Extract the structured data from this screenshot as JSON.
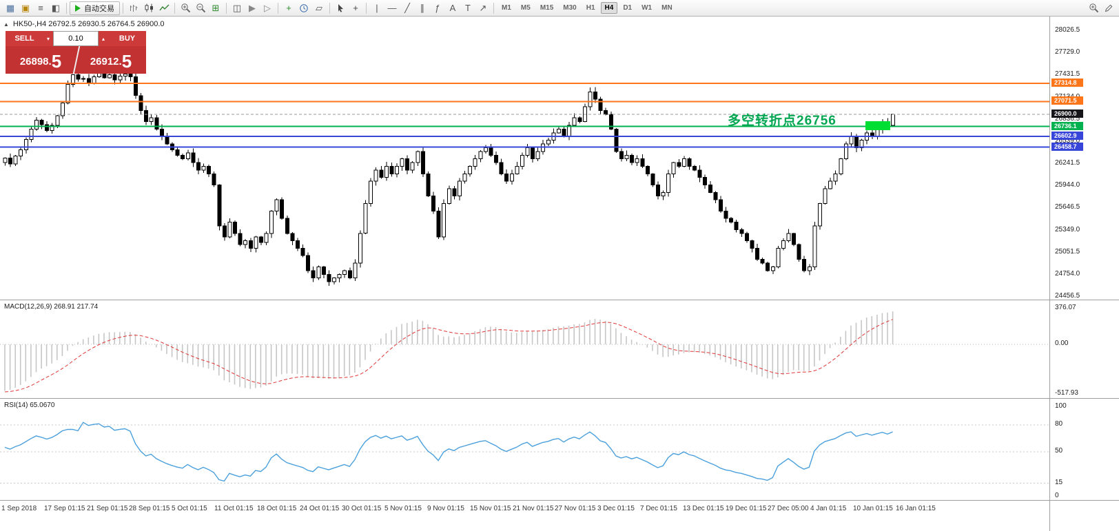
{
  "toolbar": {
    "auto_trading_label": "自动交易",
    "timeframes": [
      "M1",
      "M5",
      "M15",
      "M30",
      "H1",
      "H4",
      "D1",
      "W1",
      "MN"
    ],
    "active_timeframe": "H4",
    "groups": [
      [
        {
          "name": "new-chart-icon",
          "glyph": "▦",
          "color": "#4a6f9e"
        },
        {
          "name": "new-order-icon",
          "glyph": "▣",
          "color": "#b8860b"
        },
        {
          "name": "market-watch-icon",
          "glyph": "≡",
          "color": "#555555"
        },
        {
          "name": "navigator-icon",
          "glyph": "◧",
          "color": "#555555"
        }
      ],
      [
        {
          "name": "auto-trading-button",
          "type": "auto-trading"
        }
      ],
      [
        {
          "name": "bar-chart-icon",
          "glyph": "svg:bars"
        },
        {
          "name": "candlestick-chart-icon",
          "glyph": "svg:candles"
        },
        {
          "name": "line-chart-icon",
          "glyph": "svg:line"
        }
      ],
      [
        {
          "name": "zoom-in-icon",
          "glyph": "svg:zoomin"
        },
        {
          "name": "zoom-out-icon",
          "glyph": "svg:zoomout"
        },
        {
          "name": "grid-icon",
          "glyph": "⊞",
          "color": "#2e8b2e"
        }
      ],
      [
        {
          "name": "tile-windows-icon",
          "glyph": "◫",
          "color": "#555555"
        },
        {
          "name": "auto-scroll-icon",
          "glyph": "▶",
          "color": "#888888"
        },
        {
          "name": "chart-shift-icon",
          "glyph": "▷",
          "color": "#888888"
        }
      ],
      [
        {
          "name": "indicators-icon",
          "glyph": "+",
          "color": "#2e8b2e"
        },
        {
          "name": "periods-icon",
          "glyph": "svg:clock"
        },
        {
          "name": "templates-icon",
          "glyph": "▱",
          "color": "#555555"
        }
      ],
      [
        {
          "name": "cursor-icon",
          "glyph": "svg:cursor"
        },
        {
          "name": "crosshair-icon",
          "glyph": "+",
          "color": "#444444"
        }
      ],
      [
        {
          "name": "vertical-line-icon",
          "glyph": "|"
        },
        {
          "name": "horizontal-line-icon",
          "glyph": "—"
        },
        {
          "name": "trendline-icon",
          "glyph": "╱"
        },
        {
          "name": "channel-icon",
          "glyph": "∥"
        },
        {
          "name": "fibonacci-icon",
          "glyph": "ƒ"
        },
        {
          "name": "text-icon",
          "glyph": "A"
        },
        {
          "name": "label-icon",
          "glyph": "T"
        },
        {
          "name": "arrows-icon",
          "glyph": "↗"
        }
      ]
    ],
    "right_icons": [
      {
        "name": "search-icon",
        "glyph": "svg:zoomin"
      },
      {
        "name": "pencil-icon",
        "glyph": "svg:pencil"
      }
    ]
  },
  "chart": {
    "collapse_icon": "▲",
    "symbol_header": "HK50-,H4 26792.5 26930.5 26764.5 26900.0",
    "annotation": {
      "text": "多空转折点26756",
      "color": "#00a651",
      "anchor_value": 26736.1
    },
    "highlight_color": "#00dd33",
    "levels": [
      {
        "label": "27314.8",
        "value": 27314.8,
        "color": "#ff751a",
        "width": 2
      },
      {
        "label": "27071.5",
        "value": 27071.5,
        "color": "#ff751a",
        "width": 2
      },
      {
        "label": "26900.0",
        "value": 26900.0,
        "color": "#16161a",
        "line_color": "#9a9a9a",
        "dash": "4 3",
        "width": 1
      },
      {
        "label": "26736.1",
        "value": 26736.1,
        "color": "#00b14f",
        "width": 2
      },
      {
        "label": "26602.9",
        "value": 26602.9,
        "color": "#3745d8",
        "width": 2
      },
      {
        "label": "26458.7",
        "value": 26458.7,
        "color": "#3745d8",
        "width": 2
      }
    ],
    "axis_ticks": [
      "28026.5",
      "27729.0",
      "27431.5",
      "27134.0",
      "26836.5",
      "26539.0",
      "26241.5",
      "25944.0",
      "25646.5",
      "25349.0",
      "25051.5",
      "24754.0",
      "24456.5"
    ]
  },
  "trade_panel": {
    "sell_label": "SELL",
    "buy_label": "BUY",
    "volume": "0.10",
    "dropdown_icon": "▾",
    "spin_icon": "▴",
    "sell_price": "26898.5",
    "buy_price": "26912.5"
  },
  "macd": {
    "label": "MACD(12,26,9) 268.91 217.74",
    "axis": [
      "376.07",
      "0.00",
      "-517.93"
    ]
  },
  "rsi": {
    "label": "RSI(14) 65.0670",
    "axis": [
      "100",
      "80",
      "50",
      "15",
      "0"
    ],
    "levels": [
      80,
      50,
      15
    ]
  },
  "time_axis": [
    "1 Sep 2018",
    "17 Sep 01:15",
    "21 Sep 01:15",
    "28 Sep 01:15",
    "5 Oct 01:15",
    "11 Oct 01:15",
    "18 Oct 01:15",
    "24 Oct 01:15",
    "30 Oct 01:15",
    "5 Nov 01:15",
    "9 Nov 01:15",
    "15 Nov 01:15",
    "21 Nov 01:15",
    "27 Nov 01:15",
    "3 Dec 01:15",
    "7 Dec 01:15",
    "13 Dec 01:15",
    "19 Dec 01:15",
    "27 Dec 05:00",
    "4 Jan 01:15",
    "10 Jan 01:15",
    "16 Jan 01:15"
  ],
  "chart_data": {
    "type": "candlestick",
    "symbol": "HK50-",
    "timeframe": "H4",
    "open": "26792.5",
    "high": "26930.5",
    "low": "26764.5",
    "close": "26900.0",
    "price_axis": {
      "top_tick": 28026.5,
      "bottom_tick": 24456.5,
      "tick_step": 297.5
    },
    "closes": [
      26310,
      26230,
      26340,
      26420,
      26560,
      26700,
      26820,
      26760,
      26680,
      26750,
      26880,
      27050,
      27300,
      27430,
      27370,
      27380,
      27320,
      27400,
      27450,
      27390,
      27430,
      27360,
      27410,
      27440,
      27400,
      27150,
      26950,
      26800,
      26850,
      26700,
      26600,
      26500,
      26420,
      26350,
      26300,
      26380,
      26250,
      26150,
      26200,
      26100,
      25950,
      25400,
      25250,
      25450,
      25300,
      25150,
      25200,
      25100,
      25250,
      25180,
      25300,
      25600,
      25750,
      25500,
      25300,
      25200,
      25100,
      25000,
      24800,
      24700,
      24850,
      24750,
      24650,
      24700,
      24750,
      24800,
      24700,
      24900,
      25300,
      25700,
      26000,
      26150,
      26050,
      26200,
      26100,
      26200,
      26300,
      26150,
      26250,
      26400,
      26100,
      25800,
      25600,
      25250,
      25700,
      25900,
      25800,
      26000,
      26100,
      26200,
      26300,
      26400,
      26450,
      26350,
      26250,
      26100,
      26000,
      26100,
      26200,
      26350,
      26450,
      26300,
      26400,
      26500,
      26550,
      26650,
      26700,
      26600,
      26750,
      26850,
      26800,
      27000,
      27200,
      27100,
      26950,
      26900,
      26700,
      26400,
      26300,
      26350,
      26250,
      26300,
      26200,
      26100,
      25950,
      25800,
      25850,
      26100,
      26250,
      26200,
      26300,
      26200,
      26150,
      26050,
      25950,
      25850,
      25750,
      25600,
      25500,
      25450,
      25350,
      25300,
      25200,
      25100,
      24950,
      24900,
      24800,
      24850,
      25100,
      25200,
      25300,
      25150,
      24950,
      24800,
      24850,
      25400,
      25700,
      25900,
      26000,
      26100,
      26300,
      26500,
      26600,
      26450,
      26550,
      26650,
      26600,
      26700,
      26800,
      26750,
      26900
    ]
  }
}
